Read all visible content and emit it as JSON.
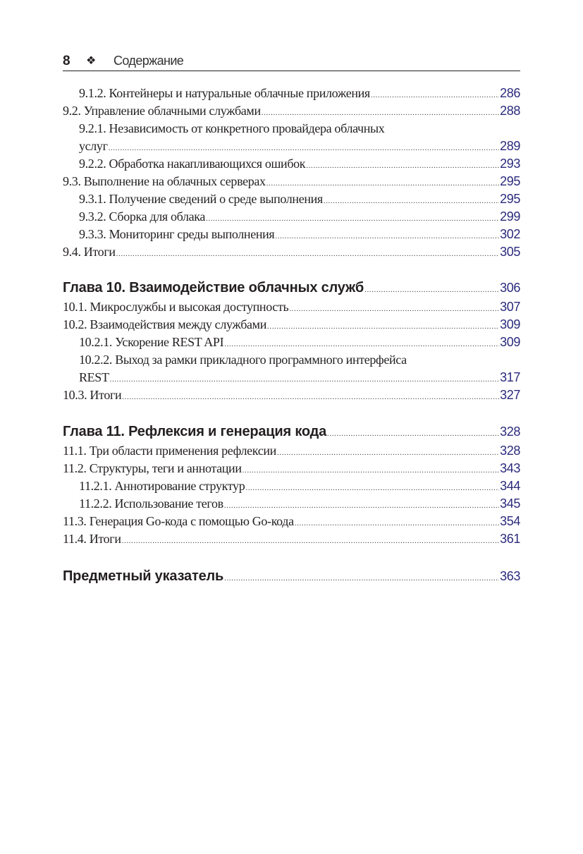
{
  "header": {
    "page_number": "8",
    "ornament": "❖",
    "title": "Содержание"
  },
  "colors": {
    "page_number_color": "#2b2a7c",
    "text": "#231f20"
  },
  "groups": [
    {
      "entries": [
        {
          "level": 2,
          "text": "9.1.2. Контейнеры и натуральные облачные приложения",
          "page": "286"
        },
        {
          "level": 1,
          "text": "9.2. Управление облачными службами",
          "page": "288"
        },
        {
          "level": 2,
          "text": "9.2.1. Независимость от конкретного провайдера  облачных",
          "cont": "услуг",
          "page": "289"
        },
        {
          "level": 2,
          "text": "9.2.2. Обработка накапливающихся ошибок",
          "page": "293"
        },
        {
          "level": 1,
          "text": "9.3. Выполнение на облачных серверах",
          "page": "295"
        },
        {
          "level": 2,
          "text": "9.3.1. Получение сведений о среде выполнения",
          "page": "295"
        },
        {
          "level": 2,
          "text": "9.3.2. Сборка для облака",
          "page": "299"
        },
        {
          "level": 2,
          "text": "9.3.3. Мониторинг среды выполнения",
          "page": "302"
        },
        {
          "level": 1,
          "text": "9.4. Итоги",
          "page": "305"
        }
      ]
    },
    {
      "entries": [
        {
          "level": 0,
          "text": "Глава 10. Взаимодействие облачных служб",
          "page": "306"
        },
        {
          "level": 1,
          "text": "10.1. Микрослужбы и высокая доступность",
          "page": "307"
        },
        {
          "level": 1,
          "text": "10.2. Взаимодействия между службами",
          "page": "309"
        },
        {
          "level": 2,
          "text": "10.2.1. Ускорение REST API",
          "page": "309"
        },
        {
          "level": 2,
          "text": "10.2.2. Выход за рамки прикладного программного интерфейса",
          "cont": "REST",
          "page": "317"
        },
        {
          "level": 1,
          "text": "10.3. Итоги",
          "page": "327"
        }
      ]
    },
    {
      "entries": [
        {
          "level": 0,
          "text": "Глава 11. Рефлексия и генерация кода",
          "page": "328"
        },
        {
          "level": 1,
          "text": "11.1. Три области применения рефлексии",
          "page": "328"
        },
        {
          "level": 1,
          "text": "11.2. Структуры, теги и аннотации",
          "page": "343"
        },
        {
          "level": 2,
          "text": "11.2.1. Аннотирование структур",
          "page": "344"
        },
        {
          "level": 2,
          "text": "11.2.2. Использование тегов",
          "page": "345"
        },
        {
          "level": 1,
          "text": "11.3. Генерация Go-кода с помощью Go-кода",
          "page": "354"
        },
        {
          "level": 1,
          "text": "11.4. Итоги",
          "page": "361"
        }
      ]
    },
    {
      "entries": [
        {
          "level": 0,
          "text": "Предметный указатель",
          "page": "363"
        }
      ]
    }
  ]
}
